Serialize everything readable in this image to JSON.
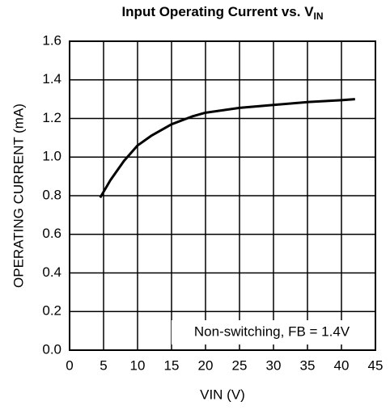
{
  "chart_data": {
    "type": "line",
    "title": "Input Operating Current vs. V",
    "title_subscript": "IN",
    "x_label": "VIN (V)",
    "y_label": "OPERATING CURRENT (mA)",
    "annotation": "Non-switching, FB = 1.4V",
    "x": [
      4.5,
      6,
      8,
      10,
      12,
      15,
      18,
      20,
      25,
      30,
      35,
      40,
      42
    ],
    "series": [
      {
        "color": "#000000",
        "values": [
          0.79,
          0.88,
          0.98,
          1.06,
          1.11,
          1.17,
          1.21,
          1.23,
          1.255,
          1.27,
          1.285,
          1.295,
          1.3
        ]
      }
    ],
    "xlim": [
      0,
      45
    ],
    "xticks": [
      0,
      5,
      10,
      15,
      20,
      25,
      30,
      35,
      40,
      45
    ],
    "ylim": [
      0,
      1.6
    ],
    "yticks": [
      {
        "value": 0,
        "label": "0.0"
      },
      0.2,
      0.4,
      0.6,
      0.8,
      {
        "value": 1,
        "label": "1.0"
      },
      1.2,
      1.4,
      1.6
    ],
    "grid": true
  }
}
